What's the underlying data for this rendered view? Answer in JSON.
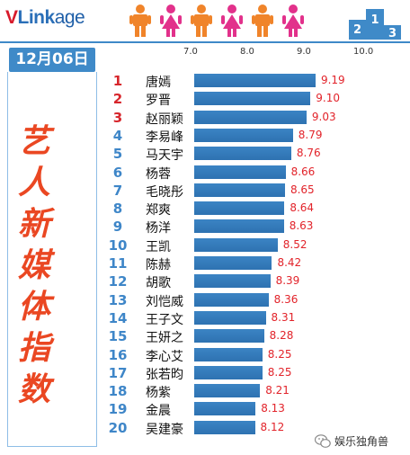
{
  "header": {
    "logo_v": "V",
    "logo_rest": "Link",
    "logo_tail": "age"
  },
  "date_label": "12月06日",
  "side_title": [
    "艺",
    "人",
    "新",
    "媒",
    "体",
    "指",
    "数"
  ],
  "podium_labels": [
    "2",
    "1",
    "3"
  ],
  "watermark": "娱乐独角兽",
  "colors": {
    "accent_blue": "#3f8ac8",
    "bar_blue": "#2e72b1",
    "value_red": "#e2232a",
    "title_orange": "#ea4722",
    "rank_red": "#d7262c",
    "rank_blue": "#3e86c8",
    "person_orange": "#f0842a",
    "person_pink": "#e2318b"
  },
  "chart_data": {
    "type": "bar",
    "orientation": "horizontal",
    "title": "艺人新媒体指数",
    "xlim": [
      7.0,
      10.0
    ],
    "xticks": [
      "7.0",
      "8.0",
      "9.0",
      "10.0"
    ],
    "categories": [
      "唐嫣",
      "罗晋",
      "赵丽颖",
      "李易峰",
      "马天宇",
      "杨蓉",
      "毛晓彤",
      "郑爽",
      "杨洋",
      "王凯",
      "陈赫",
      "胡歌",
      "刘恺威",
      "王子文",
      "王妍之",
      "李心艾",
      "张若昀",
      "杨紫",
      "金晨",
      "吴建豪"
    ],
    "ranks": [
      "1",
      "2",
      "3",
      "4",
      "5",
      "6",
      "7",
      "8",
      "9",
      "10",
      "11",
      "12",
      "13",
      "14",
      "15",
      "16",
      "17",
      "18",
      "19",
      "20"
    ],
    "values": [
      9.19,
      9.1,
      9.03,
      8.79,
      8.76,
      8.66,
      8.65,
      8.64,
      8.63,
      8.52,
      8.42,
      8.39,
      8.36,
      8.31,
      8.28,
      8.25,
      8.25,
      8.21,
      8.13,
      8.12
    ],
    "value_labels": [
      "9.19",
      "9.10",
      "9.03",
      "8.79",
      "8.76",
      "8.66",
      "8.65",
      "8.64",
      "8.63",
      "8.52",
      "8.42",
      "8.39",
      "8.36",
      "8.31",
      "8.28",
      "8.25",
      "8.25",
      "8.21",
      "8.13",
      "8.12"
    ]
  }
}
